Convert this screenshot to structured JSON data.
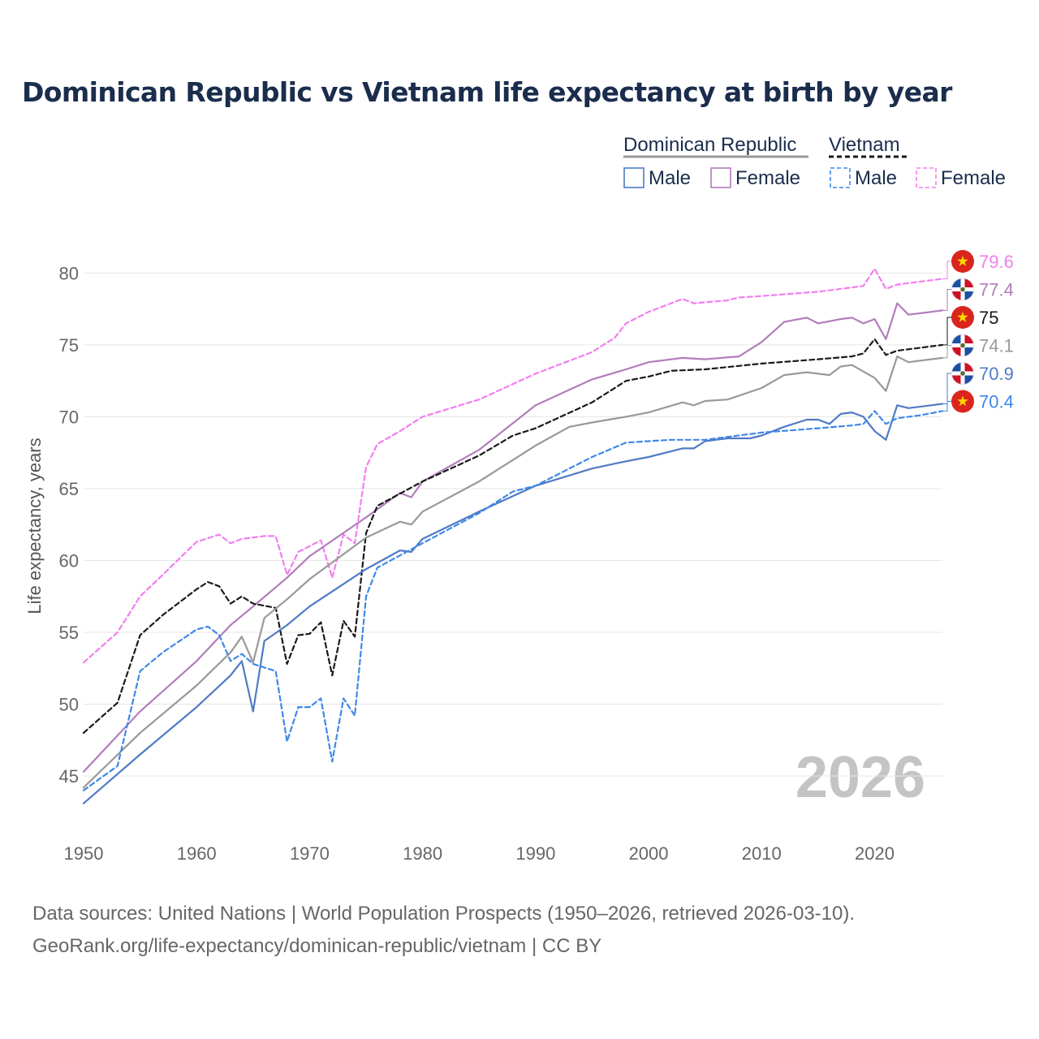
{
  "chart_data": {
    "type": "line",
    "title": "Dominican Republic vs Vietnam life expectancy at birth by year",
    "xlabel": "",
    "ylabel": "Life expectancy, years",
    "xlim": [
      1950,
      2026
    ],
    "ylim": [
      41.5,
      82
    ],
    "x_ticks": [
      1950,
      1960,
      1970,
      1980,
      1990,
      2000,
      2010,
      2020
    ],
    "y_ticks": [
      45,
      50,
      55,
      60,
      65,
      70,
      75,
      80
    ],
    "watermark_year": "2026",
    "legend": {
      "groups": [
        {
          "name": "Dominican Republic",
          "style": "solid",
          "entries": [
            "Male",
            "Female"
          ]
        },
        {
          "name": "Vietnam",
          "style": "dashed",
          "entries": [
            "Male",
            "Female"
          ]
        }
      ]
    },
    "series": [
      {
        "name": "Vietnam Female",
        "country": "Vietnam",
        "sex": "Female",
        "color": "#f27ef0",
        "dashed": true,
        "end_label": "79.6",
        "points": [
          [
            1950,
            52.9
          ],
          [
            1953,
            55.0
          ],
          [
            1955,
            57.5
          ],
          [
            1957,
            59.0
          ],
          [
            1960,
            61.3
          ],
          [
            1962,
            61.8
          ],
          [
            1963,
            61.2
          ],
          [
            1964,
            61.5
          ],
          [
            1966,
            61.7
          ],
          [
            1967,
            61.7
          ],
          [
            1968,
            59.0
          ],
          [
            1969,
            60.6
          ],
          [
            1971,
            61.4
          ],
          [
            1972,
            58.8
          ],
          [
            1973,
            61.8
          ],
          [
            1974,
            61.2
          ],
          [
            1975,
            66.5
          ],
          [
            1976,
            68.1
          ],
          [
            1978,
            69.0
          ],
          [
            1980,
            70.0
          ],
          [
            1985,
            71.2
          ],
          [
            1990,
            73.0
          ],
          [
            1995,
            74.5
          ],
          [
            1997,
            75.5
          ],
          [
            1998,
            76.5
          ],
          [
            2000,
            77.3
          ],
          [
            2003,
            78.2
          ],
          [
            2004,
            77.9
          ],
          [
            2007,
            78.1
          ],
          [
            2008,
            78.3
          ],
          [
            2010,
            78.4
          ],
          [
            2015,
            78.7
          ],
          [
            2018,
            79.0
          ],
          [
            2019,
            79.1
          ],
          [
            2020,
            80.3
          ],
          [
            2021,
            78.9
          ],
          [
            2022,
            79.2
          ],
          [
            2024,
            79.4
          ],
          [
            2026,
            79.6
          ]
        ]
      },
      {
        "name": "Dominican Republic Female",
        "country": "Dominican Republic",
        "sex": "Female",
        "color": "#b27dbb",
        "dashed": false,
        "end_label": "77.4",
        "points": [
          [
            1950,
            45.3
          ],
          [
            1955,
            49.5
          ],
          [
            1960,
            53.0
          ],
          [
            1963,
            55.5
          ],
          [
            1965,
            56.8
          ],
          [
            1968,
            58.8
          ],
          [
            1970,
            60.3
          ],
          [
            1975,
            63.0
          ],
          [
            1978,
            64.7
          ],
          [
            1979,
            64.4
          ],
          [
            1980,
            65.5
          ],
          [
            1985,
            67.7
          ],
          [
            1990,
            70.8
          ],
          [
            1995,
            72.6
          ],
          [
            1998,
            73.3
          ],
          [
            2000,
            73.8
          ],
          [
            2003,
            74.1
          ],
          [
            2005,
            74.0
          ],
          [
            2008,
            74.2
          ],
          [
            2010,
            75.2
          ],
          [
            2012,
            76.6
          ],
          [
            2014,
            76.9
          ],
          [
            2015,
            76.5
          ],
          [
            2017,
            76.8
          ],
          [
            2018,
            76.9
          ],
          [
            2019,
            76.5
          ],
          [
            2020,
            76.8
          ],
          [
            2021,
            75.4
          ],
          [
            2022,
            77.9
          ],
          [
            2023,
            77.1
          ],
          [
            2025,
            77.3
          ],
          [
            2026,
            77.4
          ]
        ]
      },
      {
        "name": "Vietnam",
        "country": "Vietnam",
        "sex": "Both",
        "color": "#1a1a1a",
        "dashed": true,
        "end_label": "75",
        "points": [
          [
            1950,
            48.0
          ],
          [
            1953,
            50.1
          ],
          [
            1955,
            54.8
          ],
          [
            1957,
            56.2
          ],
          [
            1960,
            58.0
          ],
          [
            1961,
            58.5
          ],
          [
            1962,
            58.2
          ],
          [
            1963,
            57.0
          ],
          [
            1964,
            57.5
          ],
          [
            1965,
            57.0
          ],
          [
            1967,
            56.7
          ],
          [
            1968,
            52.8
          ],
          [
            1969,
            54.8
          ],
          [
            1970,
            54.9
          ],
          [
            1971,
            55.7
          ],
          [
            1972,
            52.0
          ],
          [
            1973,
            55.8
          ],
          [
            1974,
            54.7
          ],
          [
            1975,
            61.9
          ],
          [
            1976,
            63.8
          ],
          [
            1980,
            65.5
          ],
          [
            1985,
            67.3
          ],
          [
            1988,
            68.7
          ],
          [
            1990,
            69.2
          ],
          [
            1995,
            71.0
          ],
          [
            1998,
            72.5
          ],
          [
            2000,
            72.8
          ],
          [
            2002,
            73.2
          ],
          [
            2005,
            73.3
          ],
          [
            2010,
            73.7
          ],
          [
            2015,
            74.0
          ],
          [
            2018,
            74.2
          ],
          [
            2019,
            74.4
          ],
          [
            2020,
            75.4
          ],
          [
            2021,
            74.3
          ],
          [
            2022,
            74.6
          ],
          [
            2024,
            74.8
          ],
          [
            2026,
            75.0
          ]
        ]
      },
      {
        "name": "Dominican Republic",
        "country": "Dominican Republic",
        "sex": "Both",
        "color": "#999999",
        "dashed": false,
        "end_label": "74.1",
        "points": [
          [
            1950,
            44.2
          ],
          [
            1955,
            48.0
          ],
          [
            1960,
            51.3
          ],
          [
            1963,
            53.6
          ],
          [
            1964,
            54.7
          ],
          [
            1965,
            52.9
          ],
          [
            1966,
            56.0
          ],
          [
            1968,
            57.3
          ],
          [
            1970,
            58.7
          ],
          [
            1975,
            61.6
          ],
          [
            1978,
            62.7
          ],
          [
            1979,
            62.5
          ],
          [
            1980,
            63.4
          ],
          [
            1985,
            65.5
          ],
          [
            1990,
            68.0
          ],
          [
            1993,
            69.3
          ],
          [
            1995,
            69.6
          ],
          [
            1998,
            70.0
          ],
          [
            2000,
            70.3
          ],
          [
            2003,
            71.0
          ],
          [
            2004,
            70.8
          ],
          [
            2005,
            71.1
          ],
          [
            2007,
            71.2
          ],
          [
            2010,
            72.0
          ],
          [
            2012,
            72.9
          ],
          [
            2014,
            73.1
          ],
          [
            2016,
            72.9
          ],
          [
            2017,
            73.5
          ],
          [
            2018,
            73.6
          ],
          [
            2020,
            72.7
          ],
          [
            2021,
            71.8
          ],
          [
            2022,
            74.2
          ],
          [
            2023,
            73.8
          ],
          [
            2025,
            74.0
          ],
          [
            2026,
            74.1
          ]
        ]
      },
      {
        "name": "Dominican Republic Male",
        "country": "Dominican Republic",
        "sex": "Male",
        "color": "#4f7bc4",
        "dashed": false,
        "end_label": "70.9",
        "points": [
          [
            1950,
            43.1
          ],
          [
            1955,
            46.5
          ],
          [
            1960,
            49.8
          ],
          [
            1963,
            52.0
          ],
          [
            1964,
            53.0
          ],
          [
            1965,
            49.5
          ],
          [
            1966,
            54.4
          ],
          [
            1968,
            55.5
          ],
          [
            1970,
            56.8
          ],
          [
            1975,
            59.4
          ],
          [
            1978,
            60.7
          ],
          [
            1979,
            60.6
          ],
          [
            1980,
            61.5
          ],
          [
            1985,
            63.4
          ],
          [
            1990,
            65.2
          ],
          [
            1995,
            66.4
          ],
          [
            1998,
            66.9
          ],
          [
            2000,
            67.2
          ],
          [
            2003,
            67.8
          ],
          [
            2004,
            67.8
          ],
          [
            2005,
            68.3
          ],
          [
            2007,
            68.5
          ],
          [
            2009,
            68.5
          ],
          [
            2010,
            68.7
          ],
          [
            2012,
            69.3
          ],
          [
            2014,
            69.8
          ],
          [
            2015,
            69.8
          ],
          [
            2016,
            69.5
          ],
          [
            2017,
            70.2
          ],
          [
            2018,
            70.3
          ],
          [
            2019,
            70.0
          ],
          [
            2020,
            69.0
          ],
          [
            2021,
            68.4
          ],
          [
            2022,
            70.8
          ],
          [
            2023,
            70.6
          ],
          [
            2025,
            70.8
          ],
          [
            2026,
            70.9
          ]
        ]
      },
      {
        "name": "Vietnam Male",
        "country": "Vietnam",
        "sex": "Male",
        "color": "#3f88e8",
        "dashed": true,
        "end_label": "70.4",
        "points": [
          [
            1950,
            44.0
          ],
          [
            1953,
            45.7
          ],
          [
            1955,
            52.3
          ],
          [
            1957,
            53.6
          ],
          [
            1960,
            55.2
          ],
          [
            1961,
            55.4
          ],
          [
            1962,
            54.8
          ],
          [
            1963,
            53.0
          ],
          [
            1964,
            53.5
          ],
          [
            1965,
            52.8
          ],
          [
            1967,
            52.3
          ],
          [
            1968,
            47.4
          ],
          [
            1969,
            49.8
          ],
          [
            1970,
            49.8
          ],
          [
            1971,
            50.4
          ],
          [
            1972,
            46.0
          ],
          [
            1973,
            50.4
          ],
          [
            1974,
            49.2
          ],
          [
            1975,
            57.5
          ],
          [
            1976,
            59.5
          ],
          [
            1980,
            61.2
          ],
          [
            1985,
            63.3
          ],
          [
            1988,
            64.8
          ],
          [
            1990,
            65.2
          ],
          [
            1995,
            67.2
          ],
          [
            1998,
            68.2
          ],
          [
            2000,
            68.3
          ],
          [
            2002,
            68.4
          ],
          [
            2005,
            68.4
          ],
          [
            2010,
            68.9
          ],
          [
            2015,
            69.2
          ],
          [
            2018,
            69.4
          ],
          [
            2019,
            69.5
          ],
          [
            2020,
            70.4
          ],
          [
            2021,
            69.5
          ],
          [
            2022,
            69.9
          ],
          [
            2024,
            70.1
          ],
          [
            2026,
            70.4
          ]
        ]
      }
    ]
  },
  "footer": {
    "line1": "Data sources: United Nations | World Population Prospects (1950–2026, retrieved 2026-03-10).",
    "line2": "GeoRank.org/life-expectancy/dominican-republic/vietnam | CC BY"
  }
}
